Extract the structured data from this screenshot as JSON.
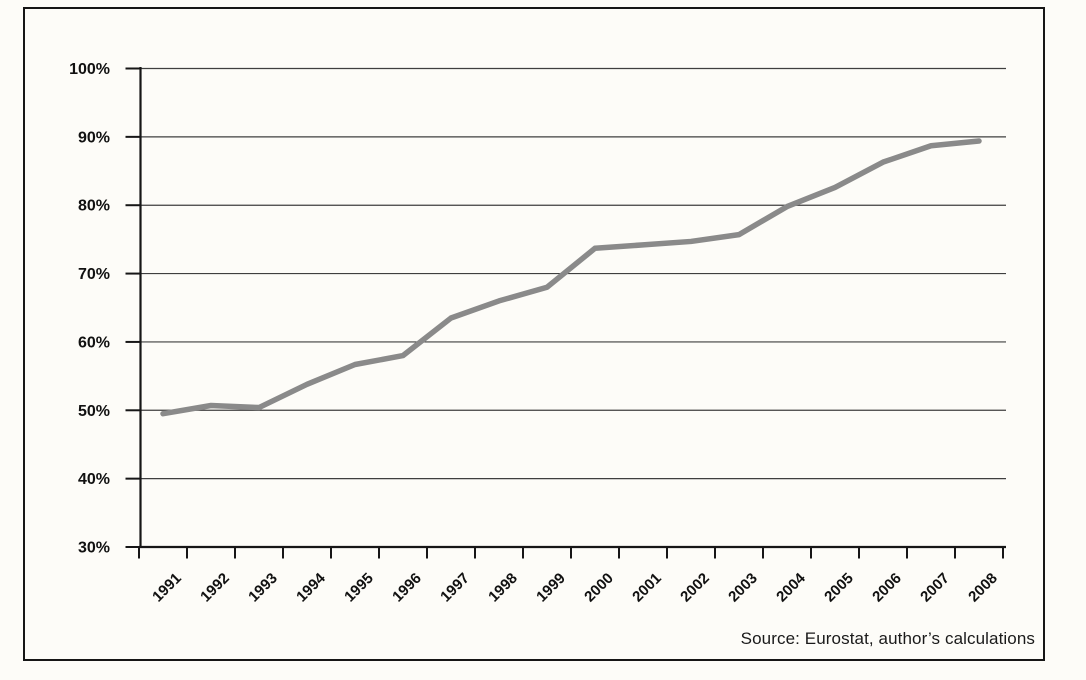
{
  "figure": {
    "source_note": "Source: Eurostat, author’s calculations"
  },
  "colors": {
    "series_line": "#8a8a8a",
    "gridline": "#3f3f3f",
    "axis": "#161616",
    "text": "#111111",
    "background": "#fdfcf8",
    "frame_border": "#161616"
  },
  "chart_data": {
    "type": "line",
    "title": "",
    "xlabel": "",
    "ylabel": "",
    "categories": [
      "1991",
      "1992",
      "1993",
      "1994",
      "1995",
      "1996",
      "1997",
      "1998",
      "1999",
      "2000",
      "2001",
      "2002",
      "2003",
      "2004",
      "2005",
      "2006",
      "2007",
      "2008"
    ],
    "values": [
      49.5,
      50.7,
      50.4,
      53.8,
      56.7,
      58.0,
      63.5,
      66.0,
      68.0,
      73.7,
      74.2,
      74.7,
      75.7,
      79.8,
      82.6,
      86.3,
      88.7,
      89.4
    ],
    "unit": "%",
    "ylim": [
      30,
      100
    ],
    "y_ticks": [
      30,
      40,
      50,
      60,
      70,
      80,
      90,
      100
    ],
    "y_tick_labels": [
      "30%",
      "40%",
      "50%",
      "60%",
      "70%",
      "80%",
      "90%",
      "100%"
    ],
    "grid": "horizontal",
    "legend": "none"
  }
}
